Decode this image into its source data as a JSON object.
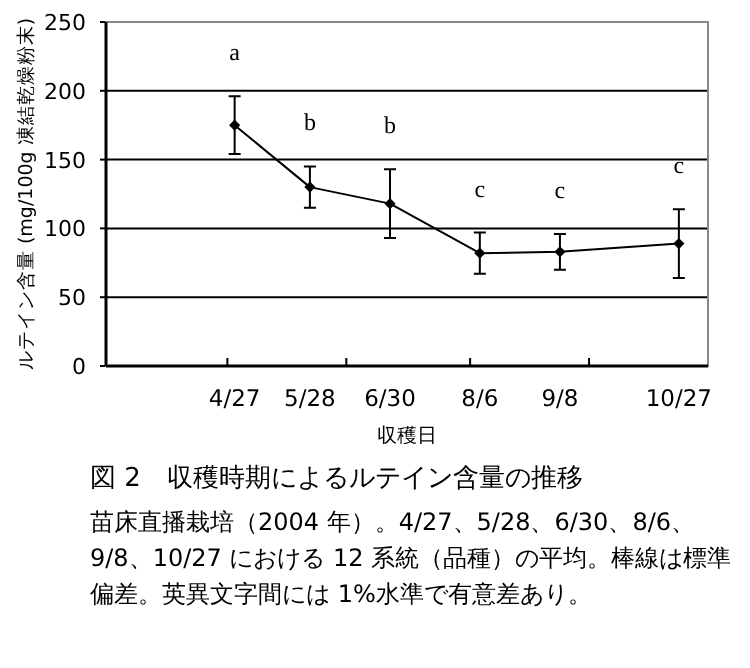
{
  "chart_data": {
    "type": "line",
    "title": "図 2　収穫時期によるルテイン含量の推移",
    "ylabel": "ルテイン含量 (mg/100g 凍結乾燥粉末)",
    "xlabel": "収穫日",
    "x": [
      "2004-04-27",
      "2004-05-28",
      "2004-06-30",
      "2004-08-06",
      "2004-09-08",
      "2004-10-27"
    ],
    "series": [
      {
        "color": "#000000",
        "values": [
          175,
          130,
          118,
          82,
          83,
          89
        ],
        "errors": [
          21,
          15,
          25,
          15,
          13,
          25
        ]
      }
    ],
    "xlim": [
      "2004-03-05",
      "2004-11-08"
    ],
    "xticks": [
      {
        "value": "2004-04-24",
        "label": null
      },
      {
        "value": "2004-06-12",
        "label": null
      },
      {
        "value": "2004-08-02",
        "label": null
      },
      {
        "value": "2004-09-20",
        "label": null
      },
      {
        "value": "2004-04-27",
        "label": "4/27"
      },
      {
        "value": "2004-05-28",
        "label": "5/28"
      },
      {
        "value": "2004-06-30",
        "label": "6/30"
      },
      {
        "value": "2004-08-06",
        "label": "8/6"
      },
      {
        "value": "2004-09-08",
        "label": "9/8"
      },
      {
        "value": "2004-10-27",
        "label": "10/27"
      }
    ],
    "ylim": [
      0,
      250
    ],
    "yticks": [
      0,
      50,
      100,
      150,
      200,
      250
    ],
    "grid": "y",
    "marker": "diamond",
    "line_style": "solid",
    "annotations": [
      "a",
      "b",
      "b",
      "c",
      "c",
      "c",
      "苗床直播栽培（2004 年）。4/27、5/28、6/30、8/6、9/8、10/27 における 12 系統（品種）の平均。棒線は標準偏差。英異文字間には 1%水準で有意差あり。"
    ]
  }
}
